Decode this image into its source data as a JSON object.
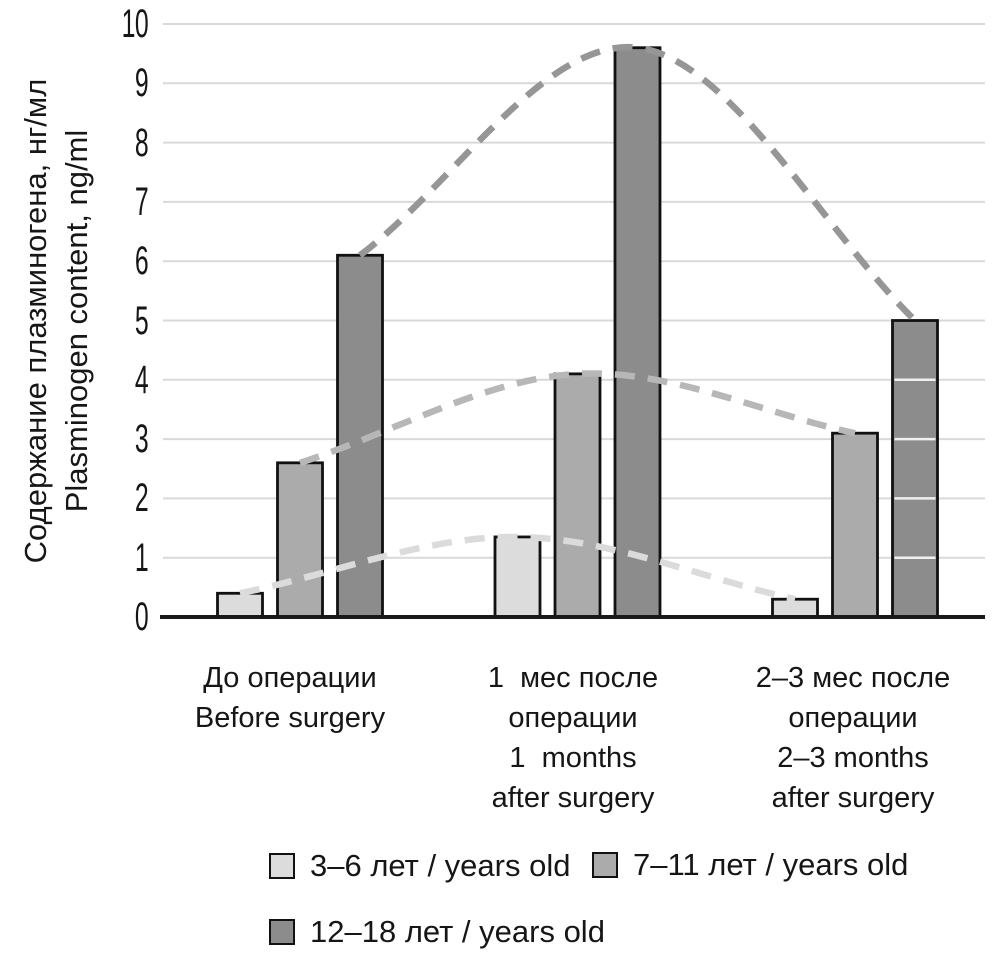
{
  "chart_data": {
    "type": "bar",
    "title": "",
    "ylabel_lines": [
      "Содержание плазминогена, нг/мл",
      "Plasminogen content, ng/ml"
    ],
    "ylim": [
      0,
      10
    ],
    "yticks": [
      0,
      1,
      2,
      3,
      4,
      5,
      6,
      7,
      8,
      9,
      10
    ],
    "grid": "horizontal",
    "legend_position": "bottom",
    "categories": [
      "До операции\nBefore surgery",
      "1  мес после\nоперации\n1  months\nafter surgery",
      "2–3 мес после\nоперации\n2–3 months\nafter surgery"
    ],
    "series": [
      {
        "name": "3–6 лет / years old",
        "values": [
          0.4,
          1.35,
          0.3
        ],
        "fill": "#dcdcdc",
        "trend_color": "#dbdbdb"
      },
      {
        "name": "7–11 лет / years old",
        "values": [
          2.6,
          4.1,
          3.1
        ],
        "fill": "#ababab",
        "trend_color": "#b7b7b7"
      },
      {
        "name": "12–18 лет / years old",
        "values": [
          6.1,
          9.6,
          5.0
        ],
        "fill": "#8c8c8c",
        "trend_color": "#969696"
      }
    ],
    "trend": "dashed smooth curve through the bar tops of each series",
    "grid_over_last_bar": true,
    "colors": {
      "grid": "#d9d9d9",
      "grid_over_bar": "#f0f0f0",
      "axis": "#1a1a1a",
      "bar_border": "#111111",
      "text": "#161616"
    }
  }
}
